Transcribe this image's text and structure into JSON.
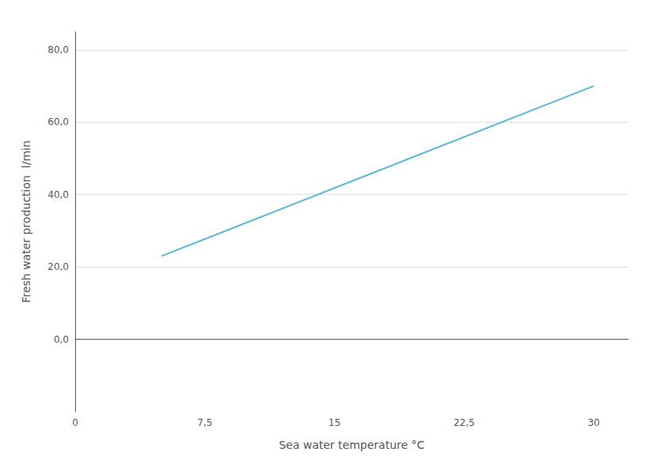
{
  "chart_data": {
    "type": "line",
    "xlabel": "Sea water temperature °C",
    "ylabel": "Fresh water production  l/min",
    "x": [
      5,
      30
    ],
    "values": [
      23,
      70
    ],
    "color": "#5BB8D4",
    "xlim": [
      0,
      32
    ],
    "ylim": [
      -20,
      85
    ],
    "xticks": [
      0,
      {
        "value": 7.5,
        "label": "7,5"
      },
      15,
      {
        "value": 22.5,
        "label": "22,5"
      },
      30
    ],
    "yticks": [
      {
        "value": 0,
        "label": "0,0"
      },
      {
        "value": 20,
        "label": "20,0"
      },
      {
        "value": 40,
        "label": "40,0"
      },
      {
        "value": 60,
        "label": "60,0"
      },
      {
        "value": 80,
        "label": "80,0"
      }
    ],
    "grid": "y"
  }
}
